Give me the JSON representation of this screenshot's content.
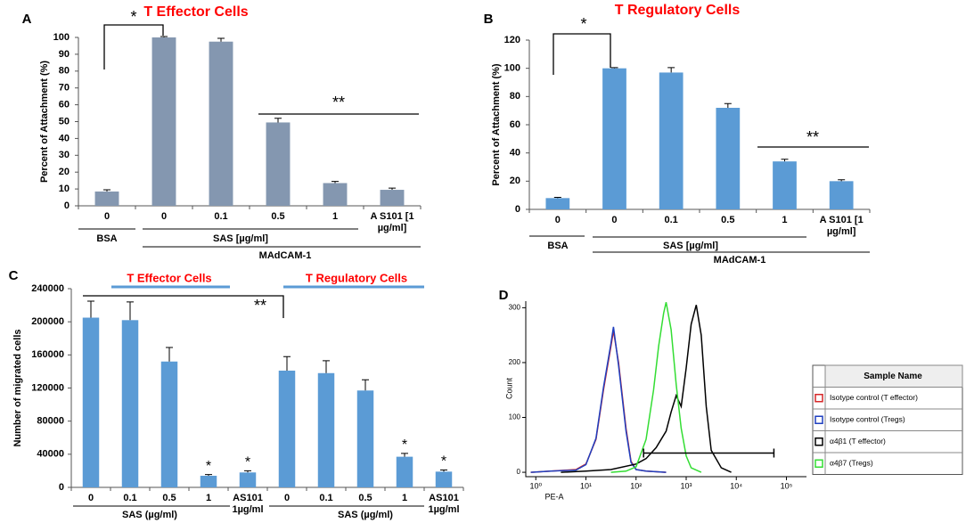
{
  "chart_data": [
    {
      "type": "bar",
      "panel": "A",
      "title": "T Effector Cells",
      "ylabel": "Percent of Attachment (%)",
      "categories": [
        "0",
        "0",
        "0.1",
        "0.5",
        "1",
        "A S101 [1 µg/ml]"
      ],
      "values": [
        8.5,
        100,
        97.5,
        49.5,
        13.5,
        9.5
      ],
      "errors": [
        1,
        0.5,
        2,
        2.5,
        1,
        1
      ],
      "color": "#8497b0",
      "ylim": [
        0,
        100
      ],
      "yticks": [
        0,
        10,
        20,
        30,
        40,
        50,
        60,
        70,
        80,
        90,
        100
      ],
      "groups": [
        "BSA",
        "SAS [µg/ml]",
        "MAdCAM-1"
      ],
      "annotations": [
        "*",
        "**"
      ]
    },
    {
      "type": "bar",
      "panel": "B",
      "title": "T Regulatory Cells",
      "ylabel": "Percent of Attachment (%)",
      "categories": [
        "0",
        "0",
        "0.1",
        "0.5",
        "1",
        "A S101 [1 µg/ml]"
      ],
      "values": [
        8,
        100,
        97,
        72,
        34,
        20
      ],
      "errors": [
        0.5,
        0.5,
        3.5,
        3,
        1.5,
        1
      ],
      "color": "#5b9bd5",
      "ylim": [
        0,
        120
      ],
      "yticks": [
        0,
        20,
        40,
        60,
        80,
        100,
        120
      ],
      "groups": [
        "BSA",
        "SAS [µg/ml]",
        "MAdCAM-1"
      ],
      "annotations": [
        "*",
        "**"
      ]
    },
    {
      "type": "bar",
      "panel": "C",
      "ylabel": "Number of migrated cells",
      "categories": [
        "0",
        "0.1",
        "0.5",
        "1",
        "AS101 1µg/ml",
        "0",
        "0.1",
        "0.5",
        "1",
        "AS101 1µg/ml"
      ],
      "values": [
        205000,
        202000,
        152000,
        14000,
        18000,
        141000,
        138000,
        117000,
        37000,
        19000
      ],
      "errors": [
        20000,
        22000,
        17000,
        1500,
        2000,
        17000,
        15000,
        13000,
        4000,
        2000
      ],
      "color": "#5b9bd5",
      "ylim": [
        0,
        240000
      ],
      "yticks": [
        0,
        40000,
        80000,
        120000,
        160000,
        200000,
        240000
      ],
      "groups": [
        "T Effector Cells",
        "T Regulatory Cells",
        "SAS (µg/ml)",
        "SAS (µg/ml)"
      ],
      "annotations": [
        "**",
        "*",
        "*",
        "*",
        "*"
      ]
    },
    {
      "type": "line",
      "panel": "D",
      "xlabel": "PE-A",
      "ylabel": "Count",
      "xlim": [
        -0.2,
        5.4
      ],
      "xticks": [
        {
          "value": 0,
          "label": "10⁰"
        },
        {
          "value": 1,
          "label": "10¹"
        },
        {
          "value": 2,
          "label": "10²"
        },
        {
          "value": 3,
          "label": "10³"
        },
        {
          "value": 4,
          "label": "10⁴"
        },
        {
          "value": 5,
          "label": "10⁵"
        }
      ],
      "ylim": [
        -8,
        312
      ],
      "yticks": [
        0,
        100,
        200,
        300
      ],
      "legend_title": "Sample Name",
      "series": [
        {
          "name": "Isotype control (T effector)",
          "color": "#d62728",
          "x": [
            -0.1,
            0.3,
            0.8,
            1.0,
            1.2,
            1.35,
            1.5,
            1.55,
            1.65,
            1.8,
            1.9,
            2.0,
            2.2,
            2.6
          ],
          "values": [
            0,
            2,
            5,
            15,
            60,
            150,
            230,
            258,
            200,
            80,
            20,
            5,
            2,
            0
          ]
        },
        {
          "name": "Isotype control (Tregs)",
          "color": "#1f3fbf",
          "x": [
            -0.1,
            0.3,
            0.8,
            1.0,
            1.2,
            1.35,
            1.5,
            1.55,
            1.65,
            1.8,
            1.9,
            2.0,
            2.2,
            2.6
          ],
          "values": [
            0,
            2,
            4,
            14,
            62,
            155,
            235,
            265,
            195,
            75,
            18,
            5,
            2,
            0
          ]
        },
        {
          "name": "α4β1 (T effector)",
          "color": "#000000",
          "x": [
            0.5,
            1.0,
            1.5,
            2.0,
            2.2,
            2.4,
            2.6,
            2.7,
            2.8,
            2.9,
            3.0,
            3.1,
            3.2,
            3.3,
            3.4,
            3.5,
            3.7,
            3.9
          ],
          "values": [
            0,
            2,
            5,
            15,
            25,
            45,
            75,
            110,
            140,
            120,
            190,
            270,
            305,
            250,
            120,
            40,
            8,
            0
          ]
        },
        {
          "name": "α4β7 (Tregs)",
          "color": "#33dd33",
          "x": [
            1.5,
            1.8,
            2.0,
            2.2,
            2.35,
            2.45,
            2.55,
            2.6,
            2.7,
            2.8,
            2.9,
            3.0,
            3.1,
            3.3
          ],
          "values": [
            0,
            2,
            10,
            60,
            150,
            230,
            290,
            310,
            260,
            160,
            80,
            30,
            8,
            0
          ]
        }
      ],
      "gate": {
        "x": [
          2.15,
          4.75
        ],
        "value": 35
      }
    }
  ]
}
